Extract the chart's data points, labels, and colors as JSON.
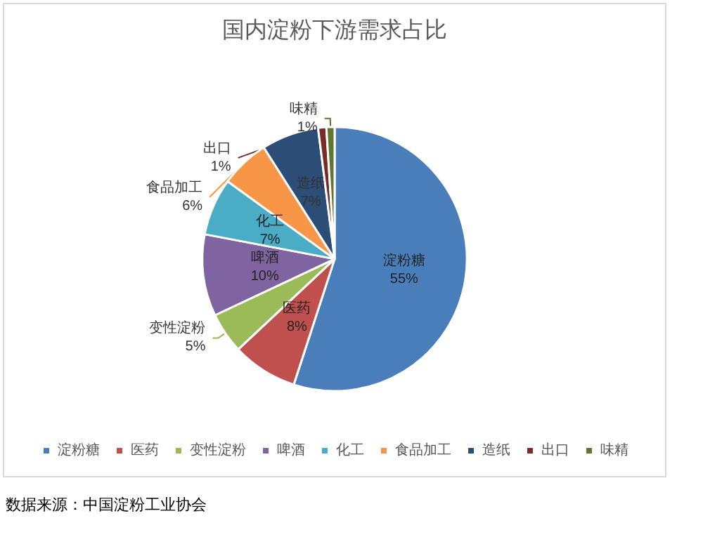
{
  "chart_data": {
    "type": "pie",
    "title": "国内淀粉下游需求占比",
    "categories": [
      "淀粉糖",
      "医药",
      "变性淀粉",
      "啤酒",
      "化工",
      "食品加工",
      "造纸",
      "出口",
      "味精"
    ],
    "values": [
      55,
      8,
      5,
      10,
      7,
      6,
      7,
      1,
      1
    ],
    "value_labels": [
      "55%",
      "8%",
      "5%",
      "10%",
      "7%",
      "6%",
      "7%",
      "1%",
      "1%"
    ],
    "colors": [
      "#4a7ebb",
      "#c0504d",
      "#9bbb59",
      "#8064a2",
      "#4bacc6",
      "#f79646",
      "#2c4d75",
      "#772c2a",
      "#5f7530"
    ],
    "legend": "bottom",
    "annotations": [
      "数据来源：中国淀粉工业协会"
    ]
  }
}
